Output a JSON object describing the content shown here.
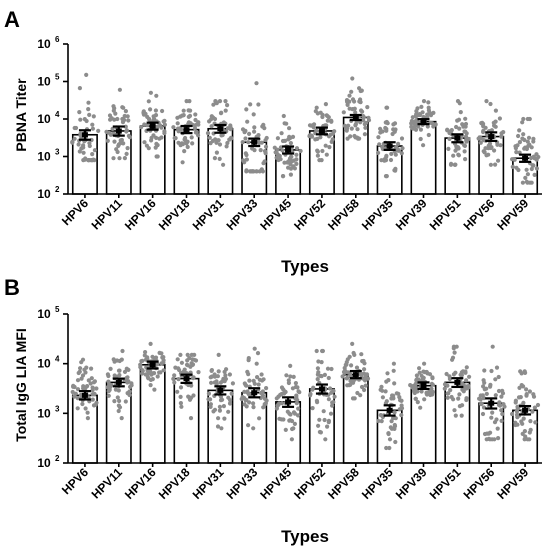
{
  "chart_data": [
    {
      "panel": "A",
      "type": "bar",
      "ylabel": "PBNA Titer",
      "xlabel": "Types",
      "yscale": "log",
      "ylim": [
        100,
        1000000
      ],
      "ytick_base": "10",
      "yticks": [
        {
          "value": 100,
          "exp": "2"
        },
        {
          "value": 1000,
          "exp": "3"
        },
        {
          "value": 10000,
          "exp": "4"
        },
        {
          "value": 100000,
          "exp": "5"
        },
        {
          "value": 1000000,
          "exp": "6"
        }
      ],
      "categories": [
        "HPV6",
        "HPV11",
        "HPV16",
        "HPV18",
        "HPV31",
        "HPV33",
        "HPV45",
        "HPV52",
        "HPV58",
        "HPV35",
        "HPV39",
        "HPV51",
        "HPV56",
        "HPV59"
      ],
      "values": [
        3800,
        4800,
        6500,
        5200,
        5500,
        2400,
        1500,
        4800,
        11000,
        1900,
        8500,
        3100,
        3400,
        900
      ],
      "error_low": [
        2800,
        3600,
        5200,
        4200,
        4300,
        1900,
        1200,
        3900,
        9400,
        1500,
        7300,
        2400,
        2600,
        720
      ],
      "error_high": [
        5000,
        6300,
        8000,
        6500,
        6900,
        3000,
        1850,
        5900,
        12800,
        2400,
        9900,
        3900,
        4400,
        1120
      ],
      "point_range_high": [
        150000,
        60000,
        50000,
        30000,
        30000,
        90000,
        12000,
        25000,
        120000,
        20000,
        30000,
        30000,
        30000,
        10000
      ],
      "point_range_low": [
        800,
        900,
        1000,
        700,
        600,
        400,
        300,
        800,
        3000,
        300,
        2000,
        600,
        600,
        200
      ],
      "grid": false,
      "legend": "none"
    },
    {
      "panel": "B",
      "type": "bar",
      "ylabel": "Total IgG LIA MFI",
      "xlabel": "Types",
      "yscale": "log",
      "ylim": [
        100,
        100000
      ],
      "ytick_base": "10",
      "yticks": [
        {
          "value": 100,
          "exp": "2"
        },
        {
          "value": 1000,
          "exp": "3"
        },
        {
          "value": 10000,
          "exp": "4"
        },
        {
          "value": 100000,
          "exp": "5"
        }
      ],
      "categories": [
        "HPV6",
        "HPV11",
        "HPV16",
        "HPV18",
        "HPV31",
        "HPV33",
        "HPV45",
        "HPV52",
        "HPV58",
        "HPV35",
        "HPV39",
        "HPV51",
        "HPV56",
        "HPV59"
      ],
      "values": [
        2300,
        4200,
        9500,
        5000,
        2900,
        2600,
        1700,
        3100,
        6000,
        1150,
        3600,
        4200,
        1600,
        1150
      ],
      "error_low": [
        1900,
        3500,
        8000,
        4100,
        2400,
        2100,
        1350,
        2500,
        5100,
        900,
        3100,
        3400,
        1250,
        950
      ],
      "error_high": [
        2800,
        5000,
        11000,
        6000,
        3500,
        3200,
        2100,
        3800,
        7100,
        1450,
        4200,
        5100,
        2000,
        1400
      ],
      "point_range_high": [
        12000,
        18000,
        25000,
        15000,
        15000,
        20000,
        9000,
        18000,
        25000,
        10000,
        10000,
        22000,
        22000,
        7000
      ],
      "point_range_low": [
        800,
        800,
        3000,
        800,
        500,
        500,
        300,
        300,
        2000,
        200,
        1300,
        900,
        300,
        300
      ],
      "grid": false,
      "legend": "none"
    }
  ]
}
